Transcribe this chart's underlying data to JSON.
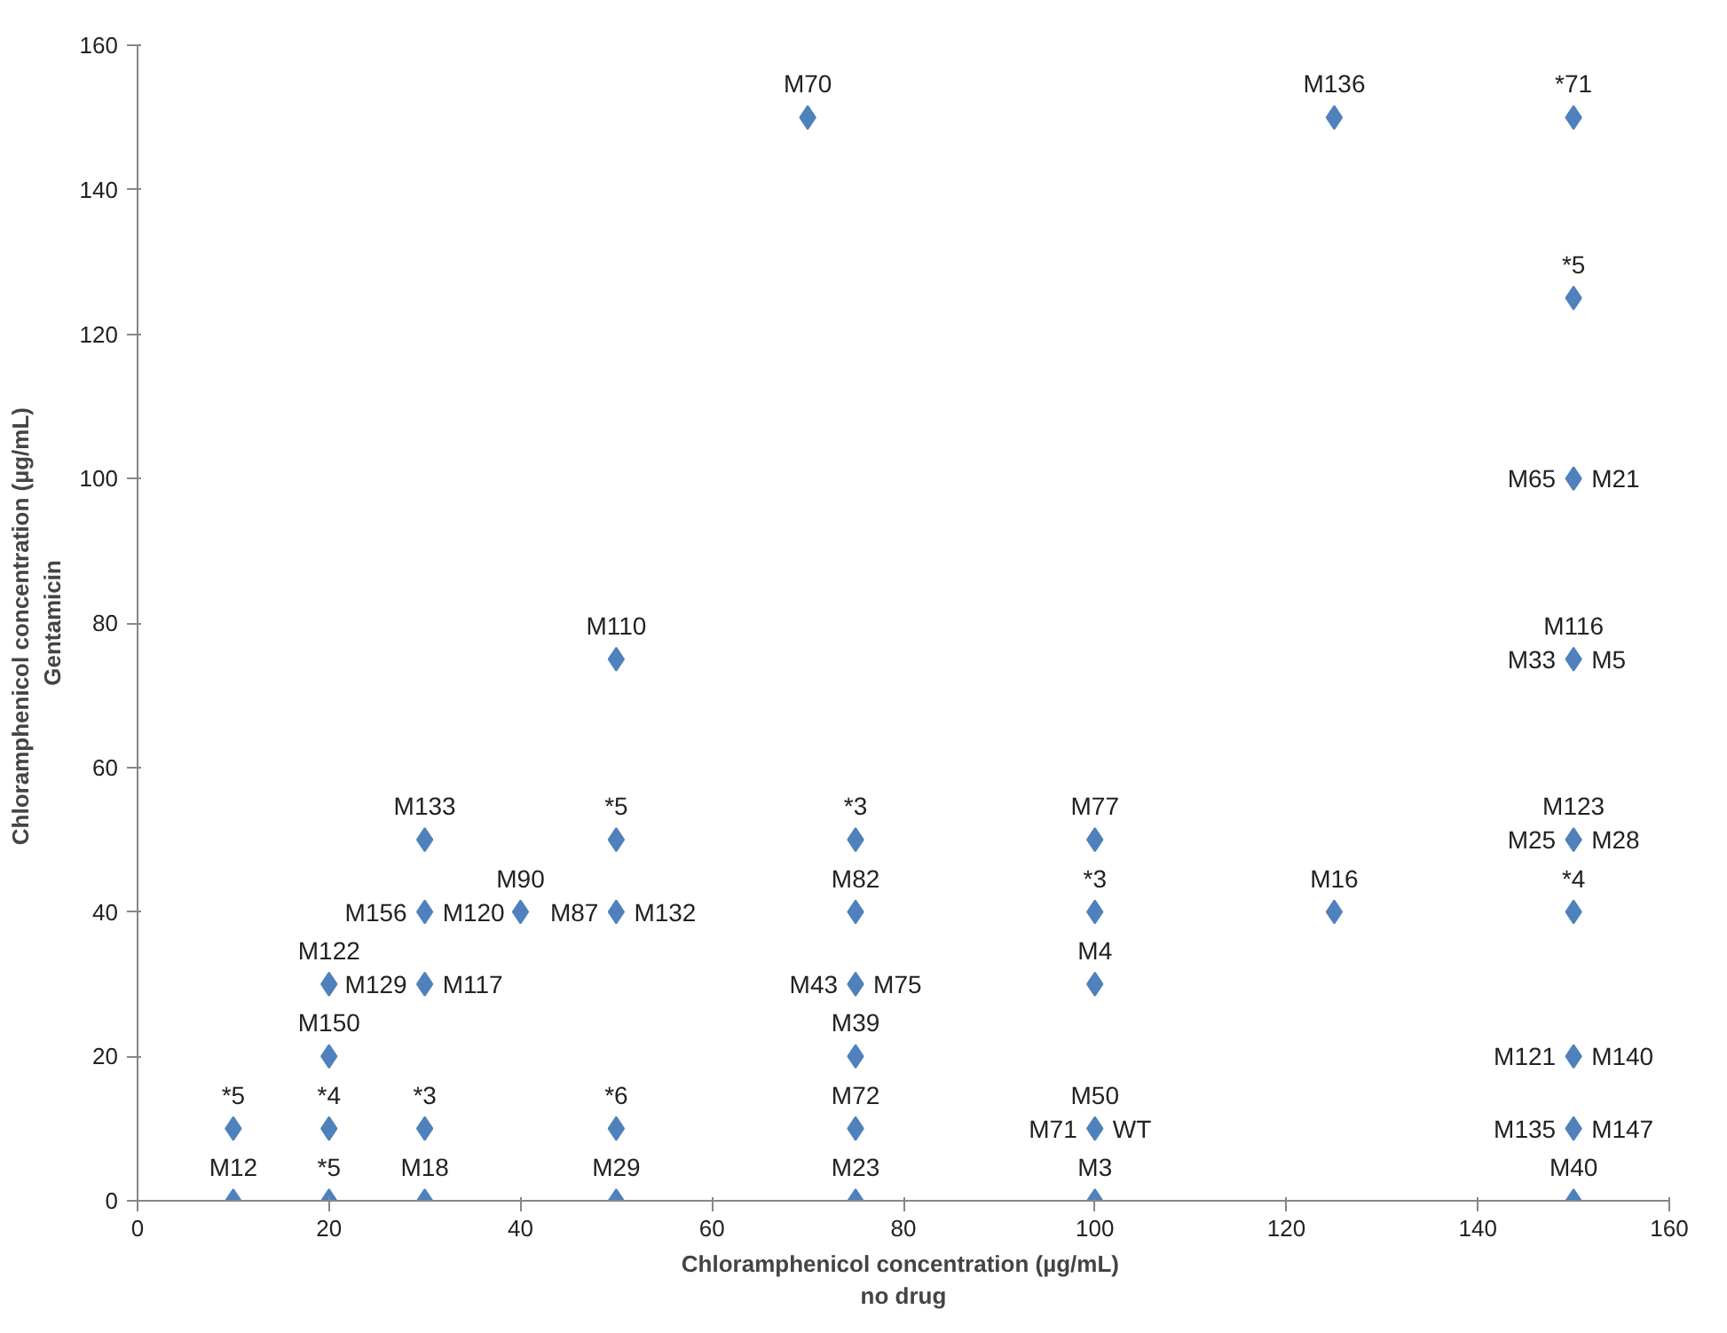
{
  "chart_data": {
    "type": "scatter",
    "xlabel": "Chloramphenicol concentration  (µg/mL)\nno drug",
    "ylabel": "Chloramphenicol concentration  (µg/mL)\nGentamicin",
    "marker": "diamond",
    "grid": false,
    "xlim": [
      0,
      160
    ],
    "xticks": [
      0,
      20,
      40,
      60,
      80,
      100,
      120,
      140,
      160
    ],
    "ylim": [
      0,
      160
    ],
    "yticks": [
      0,
      20,
      40,
      60,
      80,
      100,
      120,
      140,
      160
    ],
    "series": [
      {
        "color": "#4f81bd",
        "x": [
          10,
          10,
          20,
          20,
          20,
          20,
          30,
          30,
          30,
          30,
          30,
          40,
          50,
          50,
          50,
          50,
          50,
          70,
          75,
          75,
          75,
          75,
          75,
          75,
          100,
          100,
          100,
          100,
          100,
          125,
          125,
          150,
          150,
          150,
          150,
          150,
          150,
          150,
          150,
          150
        ],
        "values": [
          10,
          0,
          0,
          10,
          20,
          30,
          0,
          10,
          30,
          40,
          50,
          40,
          0,
          10,
          40,
          50,
          75,
          150,
          0,
          10,
          20,
          30,
          40,
          50,
          0,
          10,
          30,
          40,
          50,
          40,
          150,
          0,
          10,
          20,
          40,
          50,
          75,
          100,
          125,
          150
        ]
      }
    ],
    "annotations": [
      {
        "text": "*5",
        "x": 10,
        "y": 10
      },
      {
        "text": "M12",
        "x": 10,
        "y": 0
      },
      {
        "text": "*4",
        "x": 20,
        "y": 10
      },
      {
        "text": "*5",
        "x": 20,
        "y": 0
      },
      {
        "text": "*3",
        "x": 30,
        "y": 10
      },
      {
        "text": "M18",
        "x": 30,
        "y": 0
      },
      {
        "text": "*6",
        "x": 50,
        "y": 10
      },
      {
        "text": "M29",
        "x": 50,
        "y": 0
      },
      {
        "text": "M150",
        "x": 20,
        "y": 20
      },
      {
        "text": "M122",
        "x": 20,
        "y": 30
      },
      {
        "text": "M156",
        "x": 30,
        "y": 40
      },
      {
        "text": "M120",
        "x": 30,
        "y": 40
      },
      {
        "text": "M129",
        "x": 30,
        "y": 30
      },
      {
        "text": "M117",
        "x": 30,
        "y": 30
      },
      {
        "text": "M133",
        "x": 30,
        "y": 50
      },
      {
        "text": "M90",
        "x": 40,
        "y": 40
      },
      {
        "text": "M87",
        "x": 50,
        "y": 40
      },
      {
        "text": "M132",
        "x": 50,
        "y": 40
      },
      {
        "text": "*5",
        "x": 50,
        "y": 50
      },
      {
        "text": "M110",
        "x": 50,
        "y": 75
      },
      {
        "text": "M70",
        "x": 70,
        "y": 150
      },
      {
        "text": "*3",
        "x": 75,
        "y": 50
      },
      {
        "text": "M82",
        "x": 75,
        "y": 40
      },
      {
        "text": "M43",
        "x": 75,
        "y": 30
      },
      {
        "text": "M75",
        "x": 75,
        "y": 30
      },
      {
        "text": "M39",
        "x": 75,
        "y": 20
      },
      {
        "text": "M72",
        "x": 75,
        "y": 10
      },
      {
        "text": "M23",
        "x": 75,
        "y": 0
      },
      {
        "text": "M77",
        "x": 100,
        "y": 50
      },
      {
        "text": "*3",
        "x": 100,
        "y": 40
      },
      {
        "text": "M4",
        "x": 100,
        "y": 30
      },
      {
        "text": "M50",
        "x": 100,
        "y": 10
      },
      {
        "text": "M71",
        "x": 100,
        "y": 10
      },
      {
        "text": "WT",
        "x": 100,
        "y": 10
      },
      {
        "text": "M3",
        "x": 100,
        "y": 0
      },
      {
        "text": "M16",
        "x": 125,
        "y": 40
      },
      {
        "text": "M136",
        "x": 125,
        "y": 150
      },
      {
        "text": "*71",
        "x": 150,
        "y": 150
      },
      {
        "text": "*5",
        "x": 150,
        "y": 125
      },
      {
        "text": "M65",
        "x": 150,
        "y": 100
      },
      {
        "text": "M21",
        "x": 150,
        "y": 100
      },
      {
        "text": "M116",
        "x": 150,
        "y": 75
      },
      {
        "text": "M33",
        "x": 150,
        "y": 75
      },
      {
        "text": "M5",
        "x": 150,
        "y": 75
      },
      {
        "text": "M123",
        "x": 150,
        "y": 50
      },
      {
        "text": "M25",
        "x": 150,
        "y": 50
      },
      {
        "text": "M28",
        "x": 150,
        "y": 50
      },
      {
        "text": "*4",
        "x": 150,
        "y": 40
      },
      {
        "text": "M121",
        "x": 150,
        "y": 20
      },
      {
        "text": "M140",
        "x": 150,
        "y": 20
      },
      {
        "text": "M135",
        "x": 150,
        "y": 10
      },
      {
        "text": "M147",
        "x": 150,
        "y": 10
      },
      {
        "text": "M40",
        "x": 150,
        "y": 0
      }
    ]
  }
}
